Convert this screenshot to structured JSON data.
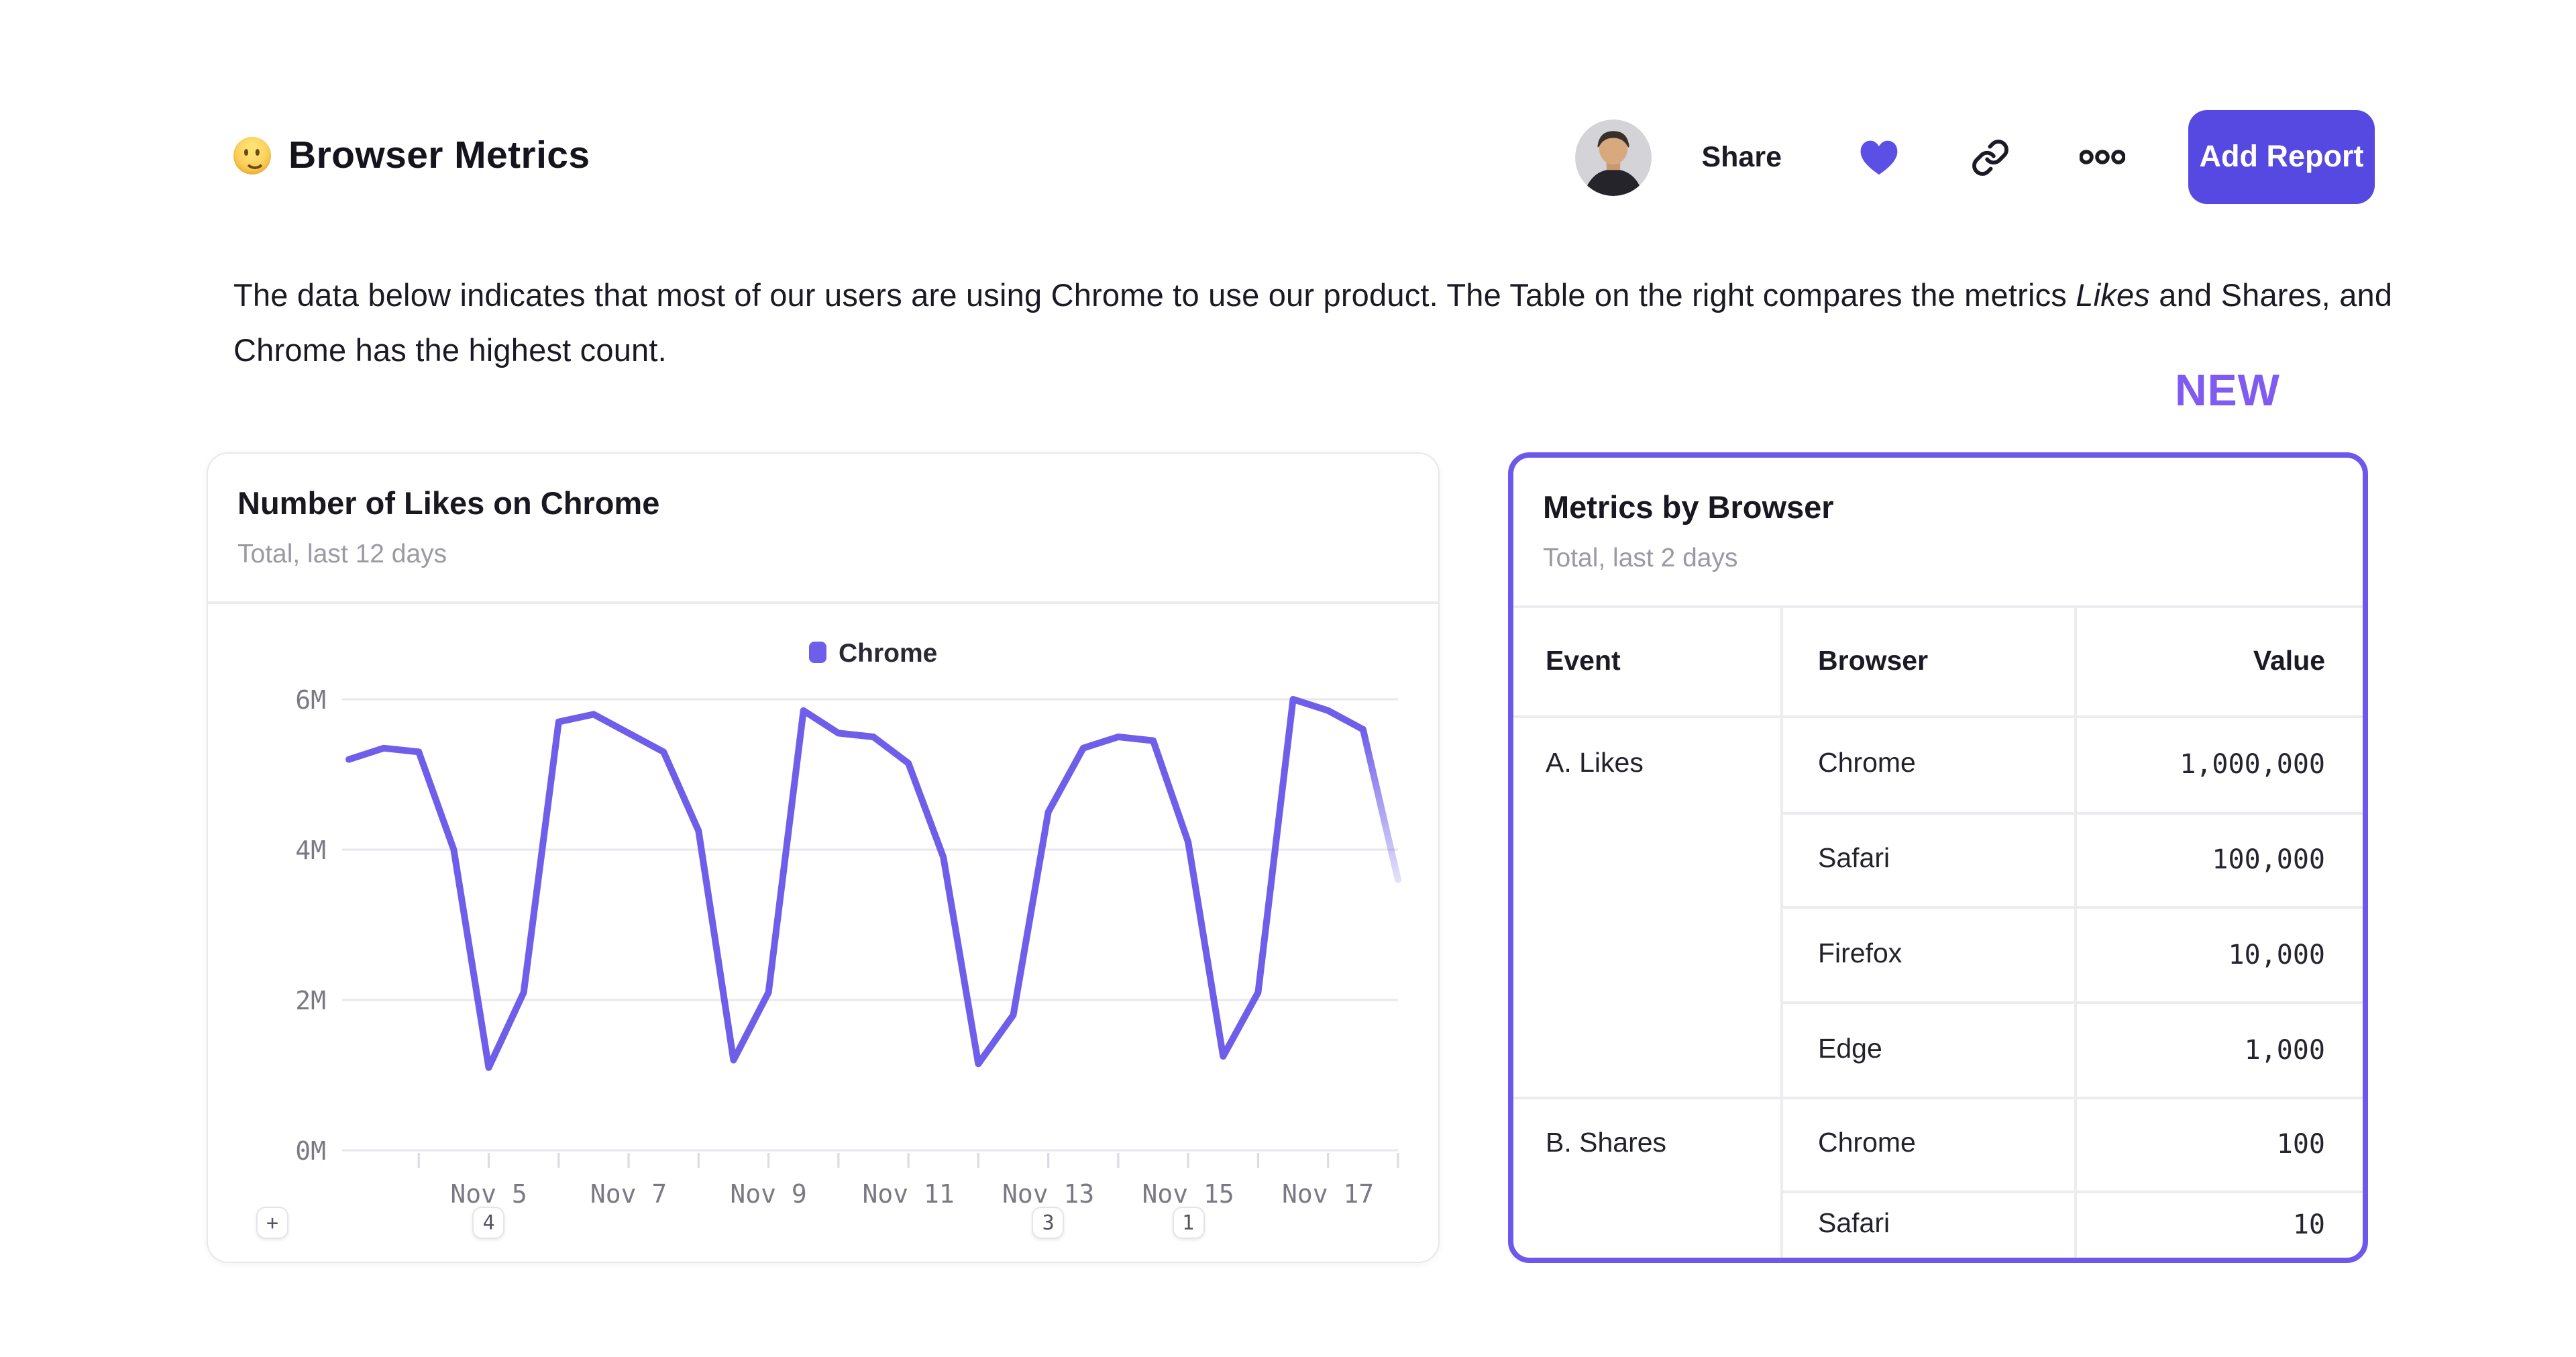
{
  "header": {
    "emoji": "🙂",
    "emoji_name": "slightly-smiling-face",
    "title": "Browser Metrics",
    "share_label": "Share",
    "add_report_label": "Add Report",
    "icons": {
      "heart": "filled-heart",
      "link": "chain-link",
      "more": "three-dots"
    }
  },
  "description": {
    "before": "The data below indicates that most of our users are using Chrome to use our product. The Table on the right compares the metrics ",
    "italic": "Likes",
    "after": " and Shares, and Chrome has the highest count."
  },
  "new_badge_label": "NEW",
  "colors": {
    "accent_button": "#5549E2",
    "heart": "#5B4FE6",
    "chart_line": "#6F5EEA",
    "right_card_border": "#6C58EC",
    "new_label": "#7F5BF1",
    "grid": "#E9E8EC",
    "axis_text": "#7B7983",
    "subtitle_text": "#9B99A3",
    "text": "#1B1923"
  },
  "left_card": {
    "title": "Number of Likes on Chrome",
    "subtitle": "Total, last 12 days",
    "annotation_buttons": [
      {
        "label": "+",
        "type": "add"
      },
      {
        "label": "4",
        "type": "count",
        "x_index": 4
      },
      {
        "label": "3",
        "type": "count",
        "x_index": 20
      },
      {
        "label": "1",
        "type": "count",
        "x_index": 24
      }
    ]
  },
  "chart_data": {
    "type": "line",
    "legend": {
      "position": "top-center",
      "label": "Chrome"
    },
    "series": [
      {
        "name": "Chrome",
        "color": "#6F5EEA",
        "values_millions": [
          5.2,
          5.35,
          5.3,
          4.0,
          1.1,
          2.1,
          5.7,
          5.8,
          5.55,
          5.3,
          4.25,
          1.2,
          2.1,
          5.85,
          5.55,
          5.5,
          5.15,
          3.9,
          1.15,
          1.8,
          4.5,
          5.35,
          5.5,
          5.45,
          4.1,
          1.25,
          2.1,
          6.0,
          5.85,
          5.6,
          3.6
        ]
      }
    ],
    "points_per_day": 2,
    "x_tick_labels": [
      "Nov 5",
      "Nov 7",
      "Nov 9",
      "Nov 11",
      "Nov 13",
      "Nov 15",
      "Nov 17"
    ],
    "x_tick_label_indices": [
      4,
      8,
      12,
      16,
      20,
      24,
      28
    ],
    "minor_tick_indices": [
      2,
      4,
      6,
      8,
      10,
      12,
      14,
      16,
      18,
      20,
      22,
      24,
      26,
      28,
      30
    ],
    "y_ticks": [
      {
        "value": 0,
        "label": "0M"
      },
      {
        "value": 2,
        "label": "2M"
      },
      {
        "value": 4,
        "label": "4M"
      },
      {
        "value": 6,
        "label": "6M"
      }
    ],
    "ylim": [
      0,
      6
    ],
    "unit": "millions",
    "grid": "horizontal-only",
    "last_segment_faded": true
  },
  "right_card": {
    "title": "Metrics by Browser",
    "subtitle": "Total, last 2 days",
    "table": {
      "columns": [
        "Event",
        "Browser",
        "Value"
      ],
      "groups": [
        {
          "event": "A. Likes",
          "rows": [
            {
              "browser": "Chrome",
              "value": "1,000,000"
            },
            {
              "browser": "Safari",
              "value": "100,000"
            },
            {
              "browser": "Firefox",
              "value": "10,000"
            },
            {
              "browser": "Edge",
              "value": "1,000"
            }
          ]
        },
        {
          "event": "B. Shares",
          "rows": [
            {
              "browser": "Chrome",
              "value": "100"
            },
            {
              "browser": "Safari",
              "value": "10"
            }
          ]
        }
      ]
    }
  }
}
